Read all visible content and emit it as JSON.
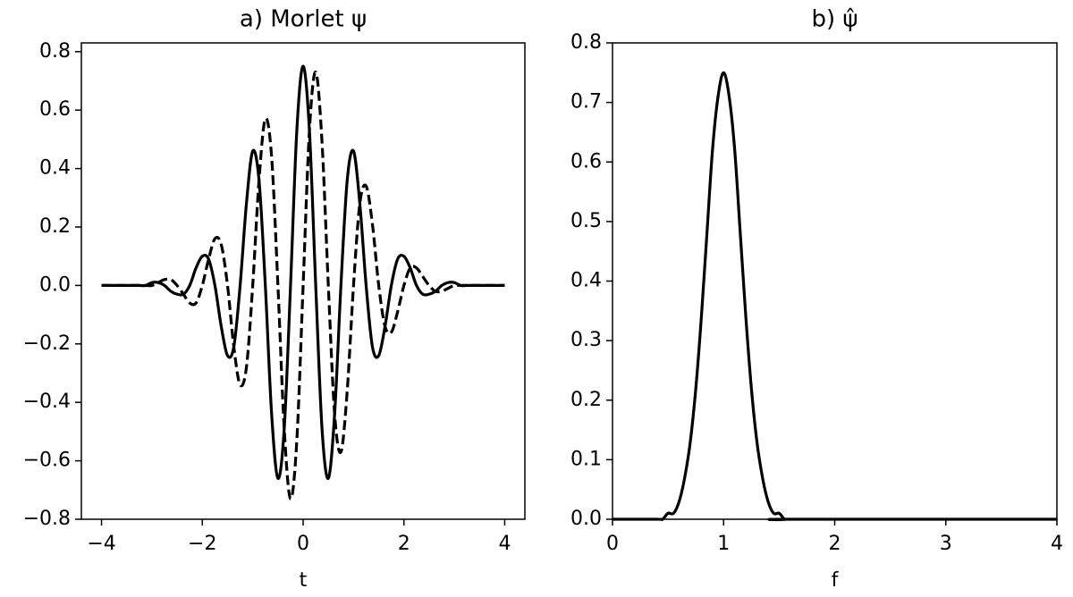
{
  "chart_data": [
    {
      "type": "line",
      "title": "a) Morlet ψ",
      "x_label": "t",
      "x": [
        -4,
        -3.875,
        -3.75,
        -3.625,
        -3.5,
        -3.375,
        -3.25,
        -3.125,
        -3,
        -2.875,
        -2.75,
        -2.625,
        -2.5,
        -2.375,
        -2.25,
        -2.125,
        -2,
        -1.875,
        -1.75,
        -1.625,
        -1.5,
        -1.375,
        -1.25,
        -1.125,
        -1,
        -0.875,
        -0.75,
        -0.625,
        -0.5,
        -0.375,
        -0.25,
        -0.125,
        0,
        0.125,
        0.25,
        0.375,
        0.5,
        0.625,
        0.75,
        0.875,
        1,
        1.125,
        1.25,
        1.375,
        1.5,
        1.625,
        1.75,
        1.875,
        2,
        2.125,
        2.25,
        2.375,
        2.5,
        2.625,
        2.75,
        2.875,
        3,
        3.125,
        3.25,
        3.375,
        3.5,
        3.625,
        3.75,
        3.875,
        4
      ],
      "series": [
        {
          "color": "#000000",
          "style": "solid",
          "values": [
            0,
            0,
            0,
            0,
            0,
            0,
            0,
            0,
            0.01,
            0.01,
            0,
            -0.02,
            -0.03,
            -0.03,
            0,
            0.06,
            0.1,
            0.09,
            0,
            -0.14,
            -0.24,
            -0.21,
            0,
            0.28,
            0.46,
            0.36,
            0,
            -0.44,
            -0.66,
            -0.49,
            0,
            0.53,
            0.75,
            0.53,
            0,
            -0.49,
            -0.66,
            -0.44,
            0,
            0.36,
            0.46,
            0.28,
            0,
            -0.21,
            -0.24,
            -0.14,
            0,
            0.09,
            0.1,
            0.06,
            0,
            -0.03,
            -0.03,
            -0.02,
            0,
            0.01,
            0.01,
            0,
            0,
            0,
            0,
            0,
            0,
            0,
            0
          ]
        },
        {
          "color": "#000000",
          "style": "dashed",
          "values": [
            0,
            0,
            0,
            0,
            0,
            0,
            0,
            0,
            0,
            0.01,
            0.02,
            0.02,
            0,
            -0.03,
            -0.06,
            -0.06,
            0,
            0.09,
            0.16,
            0.14,
            0,
            -0.21,
            -0.34,
            -0.28,
            0,
            0.36,
            0.57,
            0.44,
            0,
            -0.49,
            -0.73,
            -0.53,
            0,
            0.53,
            0.73,
            0.49,
            0,
            -0.44,
            -0.57,
            -0.36,
            0,
            0.28,
            0.34,
            0.21,
            0,
            -0.14,
            -0.16,
            -0.09,
            0,
            0.06,
            0.06,
            0.03,
            0,
            -0.02,
            -0.02,
            -0.01,
            0,
            0,
            0,
            0,
            0,
            0,
            0,
            0,
            0
          ]
        }
      ],
      "xlim": [
        -4.4,
        4.4
      ],
      "xticks": [
        {
          "value": -4,
          "label": "−4"
        },
        {
          "value": -2,
          "label": "−2"
        },
        0,
        2,
        4
      ],
      "ylim": [
        -0.8,
        0.83
      ],
      "yticks": [
        {
          "value": -0.8,
          "label": "−0.8"
        },
        {
          "value": -0.6,
          "label": "−0.6"
        },
        {
          "value": -0.4,
          "label": "−0.4"
        },
        {
          "value": -0.2,
          "label": "−0.2"
        },
        {
          "value": 0,
          "label": "0.0"
        },
        0.2,
        0.4,
        0.6,
        0.8
      ]
    },
    {
      "type": "line",
      "title": "b) ψ̂",
      "x_label": "f",
      "x": [
        0,
        0.4,
        0.45,
        0.5,
        0.55,
        0.6,
        0.65,
        0.7,
        0.75,
        0.8,
        0.85,
        0.9,
        0.95,
        1,
        1.05,
        1.1,
        1.15,
        1.2,
        1.25,
        1.3,
        1.35,
        1.4,
        1.45,
        1.5,
        1.55,
        1.6,
        4
      ],
      "series": [
        {
          "color": "#000000",
          "style": "solid",
          "values": [
            0,
            0,
            0,
            0.01,
            0.01,
            0.03,
            0.07,
            0.13,
            0.22,
            0.34,
            0.48,
            0.62,
            0.71,
            0.75,
            0.71,
            0.62,
            0.48,
            0.34,
            0.22,
            0.13,
            0.07,
            0.03,
            0.01,
            0.01,
            0,
            0,
            0
          ]
        }
      ],
      "xlim": [
        0,
        4
      ],
      "xticks": [
        0,
        1,
        2,
        3,
        4
      ],
      "ylim": [
        0,
        0.8
      ],
      "yticks": [
        {
          "value": 0,
          "label": "0.0"
        },
        0.1,
        0.2,
        0.3,
        0.4,
        0.5,
        0.6,
        0.7,
        0.8
      ]
    }
  ]
}
